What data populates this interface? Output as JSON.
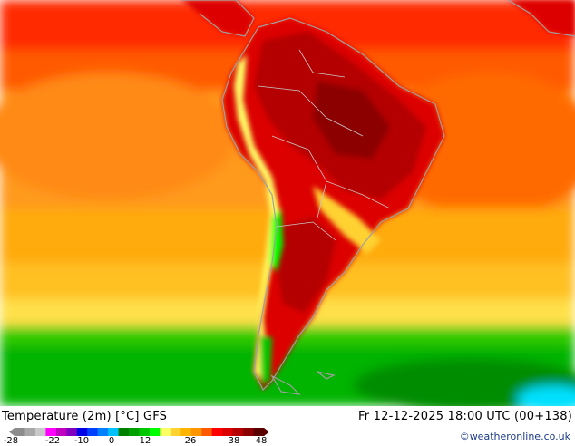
{
  "title": "Temperature (2m) [°C] GFS",
  "valid_time": "Fr 12-12-2025 18:00 UTC (00+138)",
  "credit": "©weatheronline.co.uk",
  "legend": {
    "ticks": [
      "-28",
      "-22",
      "-10",
      "0",
      "12",
      "26",
      "38",
      "48"
    ],
    "colors": [
      "#8c8c8c",
      "#a8a8a8",
      "#c8c8c8",
      "#ff00ff",
      "#c000c0",
      "#8000c0",
      "#0000e6",
      "#0040ff",
      "#0080ff",
      "#00c0ff",
      "#008000",
      "#00a000",
      "#00c800",
      "#00ff00",
      "#ffff66",
      "#ffd232",
      "#ffb400",
      "#ff9600",
      "#ff5a00",
      "#ff0000",
      "#dc0000",
      "#b40000",
      "#8c0000",
      "#5a0000"
    ]
  },
  "colors": {
    "ocean_warm": "#ff9a1e",
    "ocean_mid": "#ffb400",
    "ocean_cool": "#ffd232",
    "ocean_cold": "#00c800",
    "land_hot": "#b40000",
    "land_hottest": "#8c0000",
    "north_sea": "#ff1a00",
    "andes": "#ffff66",
    "coast_line": "#a0a0a0"
  }
}
